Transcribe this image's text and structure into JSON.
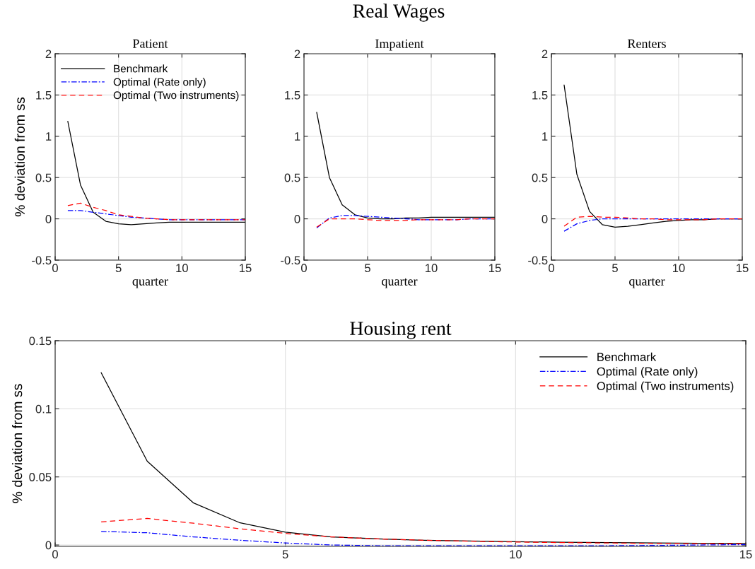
{
  "chart_data": [
    {
      "type": "line",
      "title": "Patient",
      "annotations": [
        "Real Wages"
      ],
      "xlabel": "quarter",
      "ylabel": "% deviation from ss",
      "x": [
        1,
        2,
        3,
        4,
        5,
        6,
        7,
        8,
        9,
        10,
        11,
        12,
        13,
        14,
        15
      ],
      "xlim": [
        0,
        15
      ],
      "xticks": [
        0,
        5,
        10,
        15
      ],
      "ylim": [
        -0.5,
        2
      ],
      "yticks": [
        -0.5,
        0,
        0.5,
        1,
        1.5,
        2
      ],
      "grid": true,
      "legend": "top",
      "series": [
        {
          "name": "Benchmark",
          "color": "#000000",
          "line_style": "solid",
          "values": [
            1.18,
            0.41,
            0.08,
            -0.03,
            -0.06,
            -0.07,
            -0.06,
            -0.05,
            -0.04,
            -0.04,
            -0.04,
            -0.04,
            -0.04,
            -0.04,
            -0.04
          ]
        },
        {
          "name": "Optimal (Rate only)",
          "color": "#0000ff",
          "line_style": "dashdot",
          "values": [
            0.1,
            0.1,
            0.08,
            0.06,
            0.04,
            0.02,
            0.01,
            0.0,
            -0.01,
            -0.01,
            -0.01,
            -0.01,
            -0.01,
            -0.01,
            -0.01
          ]
        },
        {
          "name": "Optimal (Two instruments)",
          "color": "#ff0000",
          "line_style": "dashed",
          "values": [
            0.16,
            0.19,
            0.14,
            0.1,
            0.05,
            0.03,
            0.01,
            0.0,
            -0.01,
            -0.01,
            -0.01,
            -0.01,
            -0.01,
            -0.01,
            -0.01
          ]
        }
      ]
    },
    {
      "type": "line",
      "title": "Impatient",
      "xlabel": "quarter",
      "x": [
        1,
        2,
        3,
        4,
        5,
        6,
        7,
        8,
        9,
        10,
        11,
        12,
        13,
        14,
        15
      ],
      "xlim": [
        0,
        15
      ],
      "xticks": [
        0,
        5,
        10,
        15
      ],
      "ylim": [
        -0.5,
        2
      ],
      "yticks": [
        -0.5,
        0,
        0.5,
        1,
        1.5,
        2
      ],
      "grid": true,
      "series": [
        {
          "color": "#000000",
          "line_style": "solid",
          "values": [
            1.29,
            0.5,
            0.17,
            0.05,
            0.01,
            0.0,
            0.0,
            0.01,
            0.01,
            0.02,
            0.02,
            0.02,
            0.02,
            0.02,
            0.02
          ]
        },
        {
          "color": "#0000ff",
          "line_style": "dashdot",
          "values": [
            -0.11,
            0.01,
            0.04,
            0.04,
            0.03,
            0.02,
            0.01,
            0.0,
            -0.01,
            -0.01,
            -0.01,
            -0.01,
            0.0,
            0.0,
            0.0
          ]
        },
        {
          "color": "#ff0000",
          "line_style": "dashed",
          "values": [
            -0.1,
            0.0,
            0.0,
            0.0,
            -0.01,
            -0.02,
            -0.02,
            -0.02,
            -0.01,
            -0.01,
            -0.01,
            -0.01,
            0.0,
            0.0,
            0.0
          ]
        }
      ]
    },
    {
      "type": "line",
      "title": "Renters",
      "xlabel": "quarter",
      "x": [
        1,
        2,
        3,
        4,
        5,
        6,
        7,
        8,
        9,
        10,
        11,
        12,
        13,
        14,
        15
      ],
      "xlim": [
        0,
        15
      ],
      "xticks": [
        0,
        5,
        10,
        15
      ],
      "ylim": [
        -0.5,
        2
      ],
      "yticks": [
        -0.5,
        0,
        0.5,
        1,
        1.5,
        2
      ],
      "grid": true,
      "series": [
        {
          "color": "#000000",
          "line_style": "solid",
          "values": [
            1.62,
            0.54,
            0.09,
            -0.07,
            -0.1,
            -0.09,
            -0.07,
            -0.05,
            -0.03,
            -0.02,
            -0.01,
            -0.01,
            0.0,
            0.0,
            0.0
          ]
        },
        {
          "color": "#0000ff",
          "line_style": "dashdot",
          "values": [
            -0.15,
            -0.06,
            -0.02,
            0.0,
            0.0,
            0.0,
            0.0,
            0.0,
            0.0,
            0.0,
            0.0,
            0.0,
            0.0,
            0.0,
            0.0
          ]
        },
        {
          "color": "#ff0000",
          "line_style": "dashed",
          "values": [
            -0.09,
            0.02,
            0.03,
            0.02,
            0.02,
            0.01,
            0.0,
            0.0,
            -0.01,
            -0.01,
            -0.01,
            -0.01,
            0.0,
            0.0,
            0.0
          ]
        }
      ]
    },
    {
      "type": "line",
      "title": "Housing rent",
      "ylabel": "% deviation from ss",
      "x": [
        1,
        2,
        3,
        4,
        5,
        6,
        7,
        8,
        9,
        10,
        11,
        12,
        13,
        14,
        15
      ],
      "xlim": [
        0,
        15
      ],
      "xticks": [
        0,
        5,
        10,
        15
      ],
      "ylim": [
        -0.001,
        0.15
      ],
      "yticks": [
        0,
        0.05,
        0.1,
        0.15
      ],
      "grid": true,
      "legend": "top right",
      "series": [
        {
          "name": "Benchmark",
          "color": "#000000",
          "line_style": "solid",
          "values": [
            0.1265,
            0.0615,
            0.031,
            0.0165,
            0.0095,
            0.006,
            0.0045,
            0.0035,
            0.003,
            0.0025,
            0.002,
            0.0018,
            0.0015,
            0.0013,
            0.0012
          ]
        },
        {
          "name": "Optimal (Rate only)",
          "color": "#0000ff",
          "line_style": "dashdot",
          "values": [
            0.01,
            0.009,
            0.006,
            0.0035,
            0.0015,
            0.0,
            -0.0005,
            -0.0005,
            -0.0005,
            -0.0005,
            -0.0005,
            -0.0005,
            -0.0003,
            0.0,
            0.0003
          ]
        },
        {
          "name": "Optimal (Two instruments)",
          "color": "#ff0000",
          "line_style": "dashed",
          "values": [
            0.017,
            0.0195,
            0.016,
            0.012,
            0.0085,
            0.006,
            0.0045,
            0.0035,
            0.0028,
            0.0022,
            0.0018,
            0.0015,
            0.0012,
            0.001,
            0.0008
          ]
        }
      ]
    }
  ]
}
